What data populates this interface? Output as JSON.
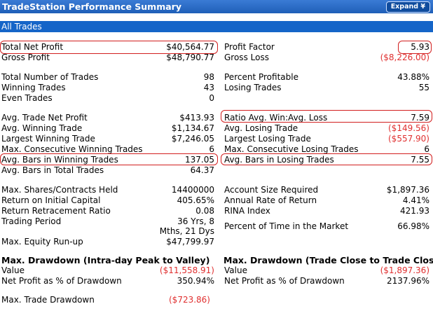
{
  "title": "TradeStation Performance Summary",
  "expand_label": "Expand ¥",
  "section_title": "All Trades",
  "left": [
    {
      "label": "Total Net Profit",
      "value": "$40,564.77",
      "neg": false
    },
    {
      "label": "Gross Profit",
      "value": "$48,790.77",
      "neg": false
    },
    {
      "label": "Total Number of Trades",
      "value": "98",
      "neg": false
    },
    {
      "label": "Winning Trades",
      "value": "43",
      "neg": false
    },
    {
      "label": "Even Trades",
      "value": "0",
      "neg": false
    },
    {
      "label": "Avg. Trade Net Profit",
      "value": "$413.93",
      "neg": false
    },
    {
      "label": "Avg. Winning Trade",
      "value": "$1,134.67",
      "neg": false
    },
    {
      "label": "Largest Winning Trade",
      "value": "$7,246.05",
      "neg": false
    },
    {
      "label": "Max. Consecutive Winning Trades",
      "value": "6",
      "neg": false
    },
    {
      "label": "Avg. Bars in Winning Trades",
      "value": "137.05",
      "neg": false
    },
    {
      "label": "Avg. Bars in Total Trades",
      "value": "64.37",
      "neg": false
    },
    {
      "label": "Max. Shares/Contracts Held",
      "value": "14400000",
      "neg": false
    },
    {
      "label": "Return on Initial Capital",
      "value": "405.65%",
      "neg": false
    },
    {
      "label": "Return Retracement Ratio",
      "value": "0.08",
      "neg": false
    },
    {
      "label": "Trading Period",
      "value": "36 Yrs, 8",
      "neg": false
    },
    {
      "label": "",
      "value": "Mths, 21 Dys",
      "neg": false
    },
    {
      "label": "Max. Equity Run-up",
      "value": "$47,799.97",
      "neg": false
    }
  ],
  "right": [
    {
      "label": "Profit Factor",
      "value": "5.93",
      "neg": false
    },
    {
      "label": "Gross Loss",
      "value": "($8,226.00)",
      "neg": true
    },
    {
      "label": "Percent Profitable",
      "value": "43.88%",
      "neg": false
    },
    {
      "label": "Losing Trades",
      "value": "55",
      "neg": false
    },
    {
      "label": "Ratio Avg. Win:Avg. Loss",
      "value": "7.59",
      "neg": false
    },
    {
      "label": "Avg. Losing Trade",
      "value": "($149.56)",
      "neg": true
    },
    {
      "label": "Largest Losing Trade",
      "value": "($557.90)",
      "neg": true
    },
    {
      "label": "Max. Consecutive Losing Trades",
      "value": "6",
      "neg": false
    },
    {
      "label": "Avg. Bars in Losing Trades",
      "value": "7.55",
      "neg": false
    },
    {
      "label": "Account Size Required",
      "value": "$1,897.36",
      "neg": false
    },
    {
      "label": "Annual Rate of Return",
      "value": "4.41%",
      "neg": false
    },
    {
      "label": "RINA Index",
      "value": "421.93",
      "neg": false
    },
    {
      "label": "Percent of Time in the Market",
      "value": "66.98%",
      "neg": false
    }
  ],
  "drawdown_intraday": {
    "title": "Max. Drawdown (Intra-day Peak to Valley)",
    "rows": [
      {
        "label": "Value",
        "value": "($11,558.91)",
        "neg": true
      },
      {
        "label": "Net Profit as % of Drawdown",
        "value": "350.94%",
        "neg": false
      }
    ]
  },
  "drawdown_close": {
    "title": "Max. Drawdown (Trade Close to Trade Close)",
    "rows": [
      {
        "label": "Value",
        "value": "($1,897.36)",
        "neg": true
      },
      {
        "label": "Net Profit as % of Drawdown",
        "value": "2137.96%",
        "neg": false
      }
    ]
  },
  "max_trade_drawdown": {
    "label": "Max. Trade Drawdown",
    "value": "($723.86)",
    "neg": true
  }
}
